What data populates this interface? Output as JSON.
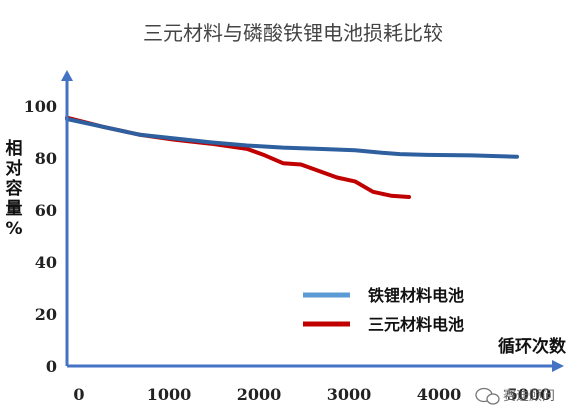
{
  "chart_data": {
    "type": "line",
    "title": "三元材料与磷酸铁锂电池损耗比较",
    "xlabel": "循环次数",
    "ylabel": "相对容量%",
    "xlim": [
      0,
      5000
    ],
    "ylim": [
      0,
      100
    ],
    "x_ticks": [
      "0",
      "1000",
      "2000",
      "3000",
      "4000",
      "5000"
    ],
    "y_ticks": [
      "0",
      "20",
      "40",
      "60",
      "80",
      "100"
    ],
    "grid": false,
    "legend_position": "lower-right",
    "series": [
      {
        "name": "铁锂材料电池",
        "color": "#2e5f9e",
        "legend_color": "#5b9bd5",
        "x": [
          0,
          400,
          800,
          1200,
          1600,
          2000,
          2400,
          2800,
          3200,
          3500,
          3700,
          4000,
          4500,
          5000
        ],
        "y": [
          95,
          92,
          89,
          87.5,
          86,
          84.8,
          84,
          83.5,
          83,
          82,
          81.5,
          81.2,
          81,
          80.5
        ]
      },
      {
        "name": "三元材料电池",
        "color": "#c00000",
        "legend_color": "#c00000",
        "x": [
          0,
          400,
          800,
          1200,
          1600,
          2000,
          2200,
          2400,
          2600,
          2800,
          3000,
          3200,
          3400,
          3600,
          3800
        ],
        "y": [
          95.5,
          92,
          89,
          87,
          85.5,
          83.5,
          81,
          78,
          77.5,
          75,
          72.5,
          71,
          67,
          65.5,
          65
        ]
      }
    ]
  },
  "watermark": {
    "text": "赛迪顾问",
    "icon": "wechat-icon"
  }
}
